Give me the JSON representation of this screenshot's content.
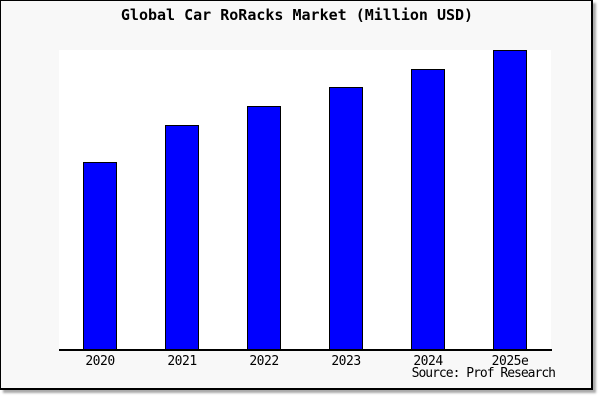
{
  "chart_data": {
    "type": "bar",
    "title": "Global Car RoRacks Market (Million USD)",
    "categories": [
      "2020",
      "2021",
      "2022",
      "2023",
      "2024",
      "2025e"
    ],
    "values": [
      188,
      225,
      244,
      263,
      281,
      300
    ],
    "ylim": [
      0,
      300
    ],
    "y_axis_labeled": false,
    "gridlines": false,
    "legend": "none",
    "value_note": "y-axis has no tick labels in the image; values are relative heights where 300 = top of plot area",
    "bar_color": "#0000ff",
    "bar_edge_color": "#000000",
    "plot_background": "#ffffff",
    "page_background": "#f8f8f8",
    "source": "Source: Prof Research"
  }
}
